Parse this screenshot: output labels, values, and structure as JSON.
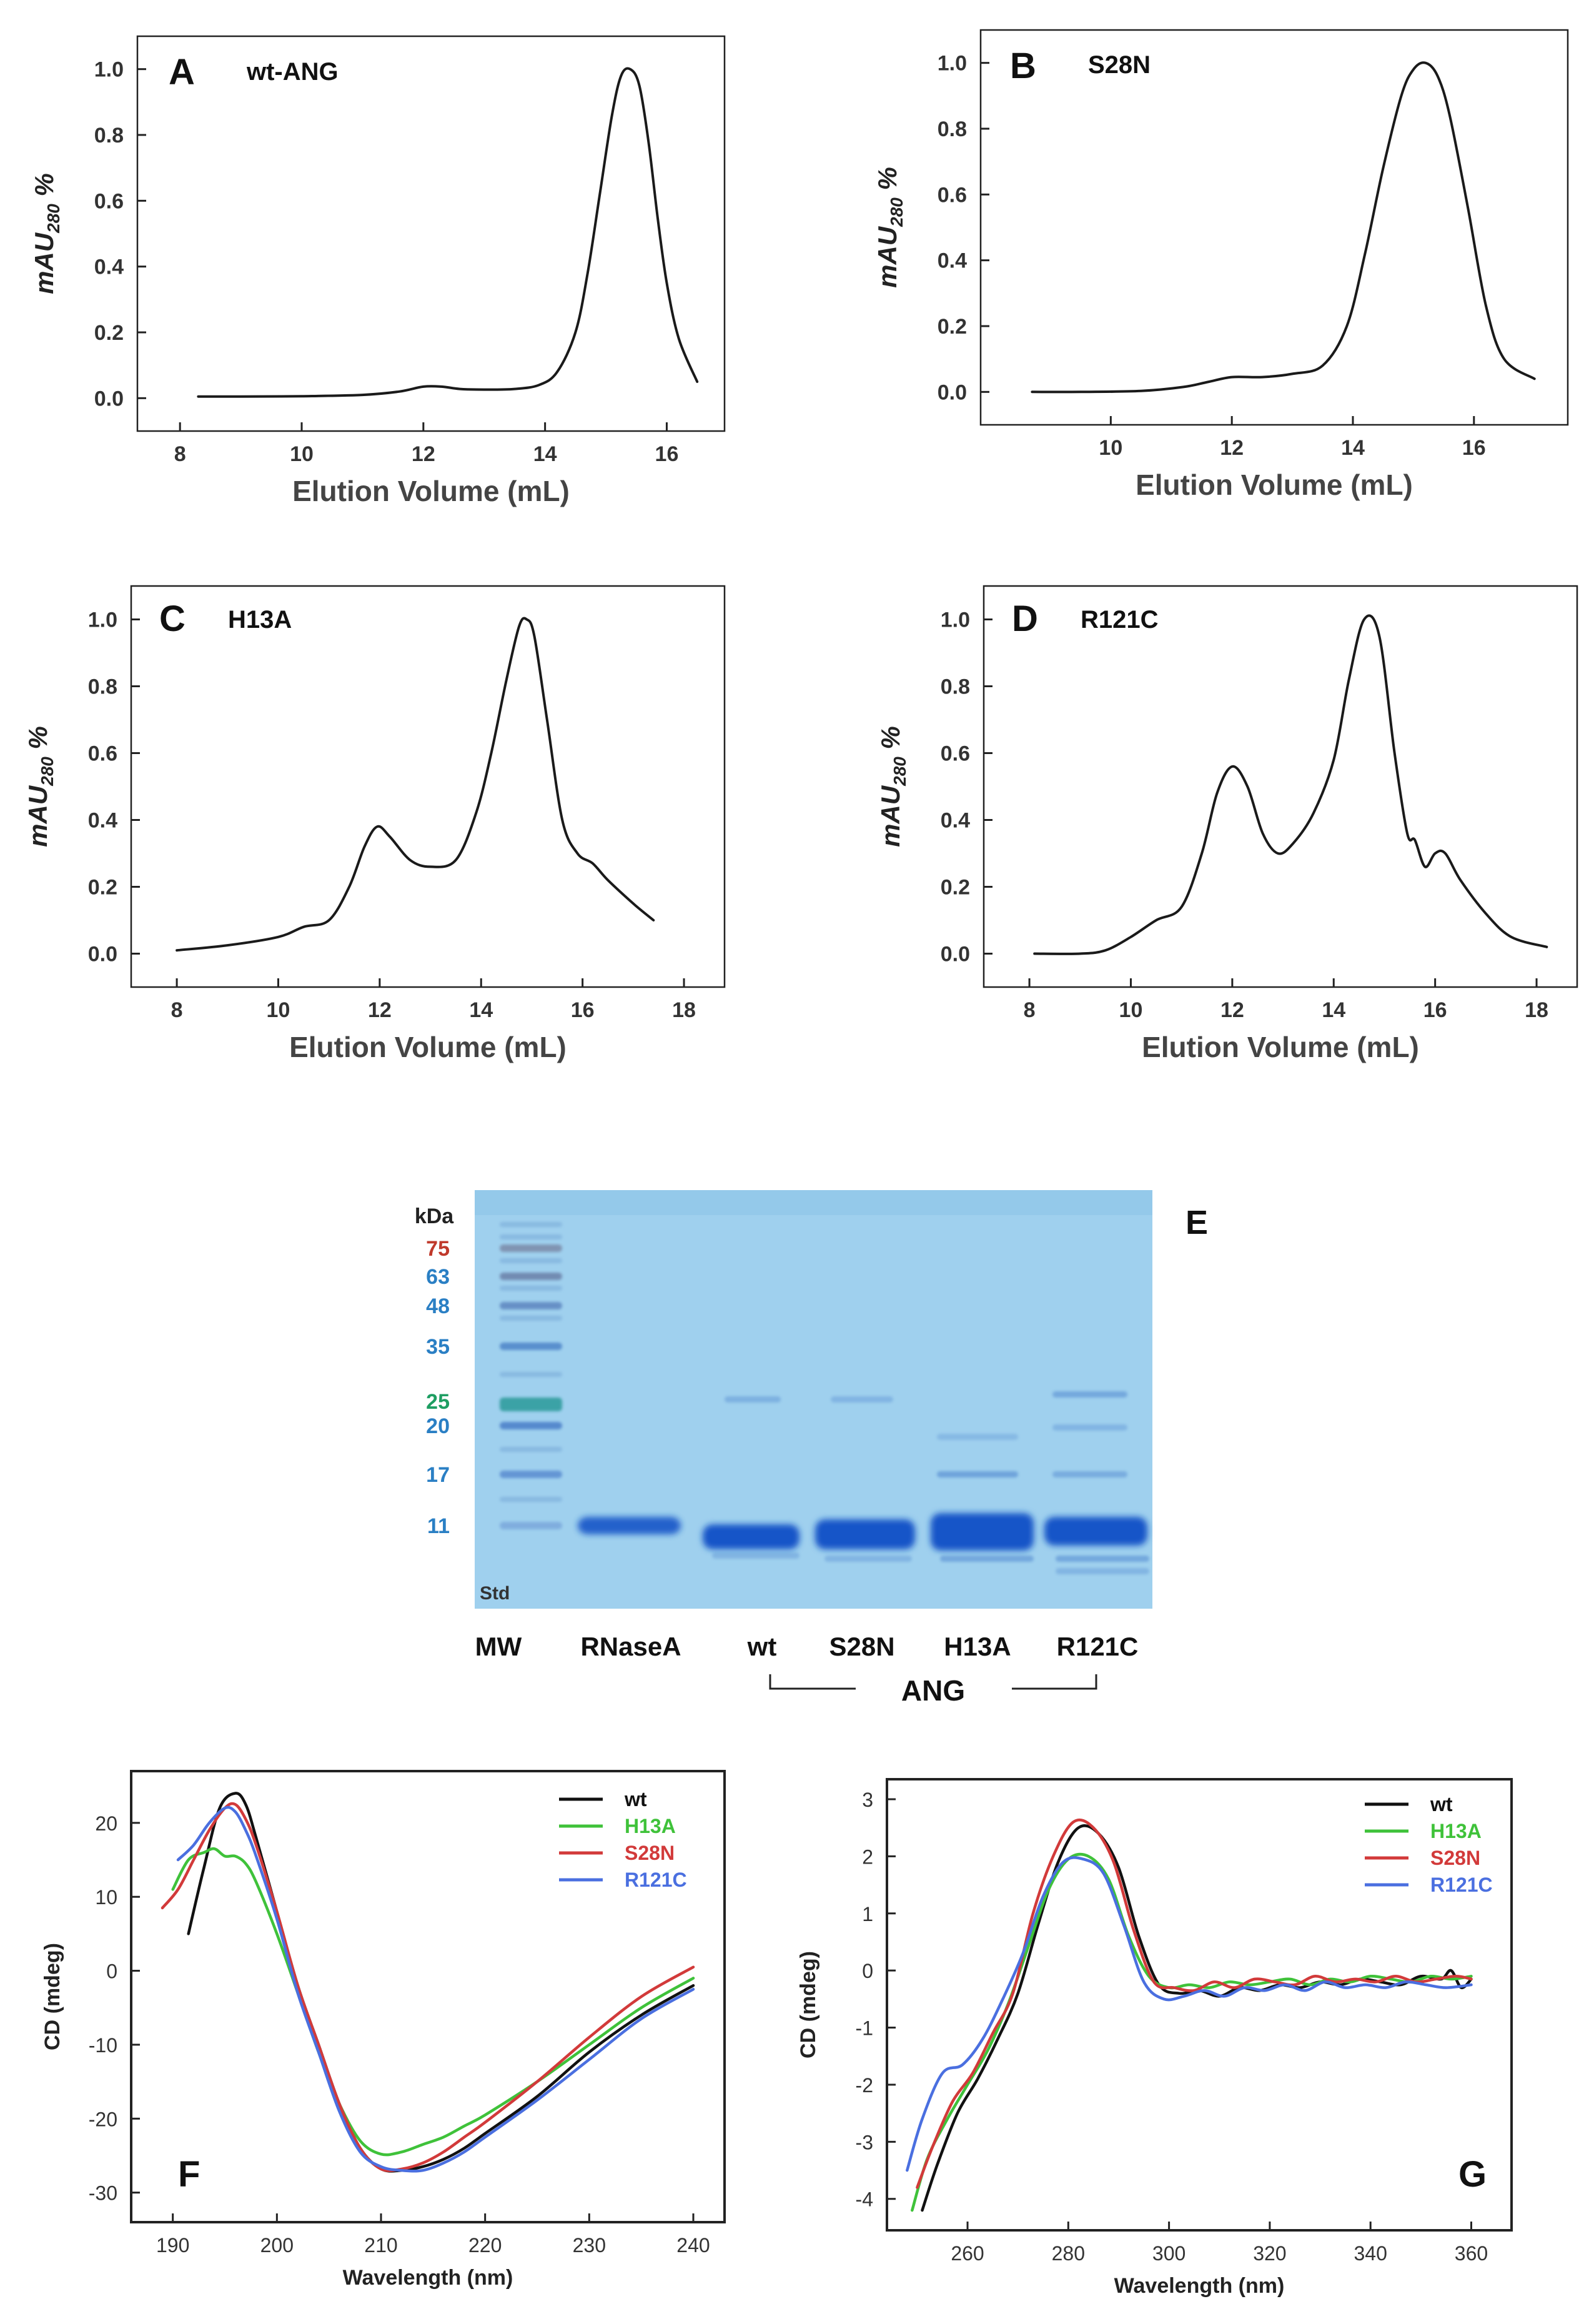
{
  "chart_data": [
    {
      "panel": "A",
      "type": "line",
      "title": "wt-ANG",
      "xlabel": "Elution Volume (mL)",
      "ylabel_main": "mAU",
      "ylabel_sub": "280",
      "ylabel_suffix": " %",
      "xlim": [
        7.3,
        16.95
      ],
      "ylim": [
        -0.1,
        1.1
      ],
      "xticks": [
        8,
        10,
        12,
        14,
        16
      ],
      "yticks": [
        0.0,
        0.2,
        0.4,
        0.6,
        0.8,
        1.0
      ],
      "series": [
        {
          "name": "wt-ANG",
          "color": "#1a1a1a",
          "x": [
            8.3,
            9,
            10,
            11,
            11.6,
            12.0,
            12.3,
            12.6,
            13,
            13.5,
            13.9,
            14.2,
            14.5,
            14.7,
            14.9,
            15.1,
            15.25,
            15.4,
            15.55,
            15.7,
            15.85,
            16.0,
            16.2,
            16.5
          ],
          "y": [
            0.005,
            0.005,
            0.006,
            0.01,
            0.02,
            0.035,
            0.035,
            0.028,
            0.026,
            0.028,
            0.04,
            0.08,
            0.2,
            0.38,
            0.62,
            0.86,
            0.98,
            1.0,
            0.95,
            0.78,
            0.55,
            0.35,
            0.18,
            0.05
          ]
        }
      ]
    },
    {
      "panel": "B",
      "type": "line",
      "title": "S28N",
      "xlabel": "Elution Volume (mL)",
      "ylabel_main": "mAU",
      "ylabel_sub": "280",
      "ylabel_suffix": " %",
      "xlim": [
        7.85,
        17.55
      ],
      "ylim": [
        -0.1,
        1.1
      ],
      "xticks": [
        10,
        12,
        14,
        16
      ],
      "yticks": [
        0.0,
        0.2,
        0.4,
        0.6,
        0.8,
        1.0
      ],
      "series": [
        {
          "name": "S28N",
          "color": "#1a1a1a",
          "x": [
            8.7,
            9.5,
            10.5,
            11.2,
            11.6,
            12.0,
            12.5,
            13,
            13.5,
            13.9,
            14.2,
            14.5,
            14.8,
            15.0,
            15.2,
            15.4,
            15.6,
            15.9,
            16.2,
            16.5,
            17.0
          ],
          "y": [
            0.0,
            0.0,
            0.003,
            0.015,
            0.03,
            0.045,
            0.045,
            0.055,
            0.08,
            0.2,
            0.42,
            0.68,
            0.9,
            0.98,
            1.0,
            0.96,
            0.84,
            0.56,
            0.26,
            0.1,
            0.04
          ]
        }
      ]
    },
    {
      "panel": "C",
      "type": "line",
      "title": "H13A",
      "xlabel": "Elution Volume (mL)",
      "ylabel_main": "mAU",
      "ylabel_sub": "280",
      "ylabel_suffix": " %",
      "xlim": [
        7.1,
        18.8
      ],
      "ylim": [
        -0.1,
        1.1
      ],
      "xticks": [
        8,
        10,
        12,
        14,
        16,
        18
      ],
      "yticks": [
        0.0,
        0.2,
        0.4,
        0.6,
        0.8,
        1.0
      ],
      "series": [
        {
          "name": "H13A",
          "color": "#1a1a1a",
          "x": [
            8.0,
            9,
            10,
            10.5,
            11,
            11.4,
            11.7,
            11.95,
            12.2,
            12.6,
            13.0,
            13.5,
            13.9,
            14.2,
            14.5,
            14.75,
            14.9,
            15.05,
            15.3,
            15.6,
            15.9,
            16.2,
            16.5,
            17.0,
            17.4
          ],
          "y": [
            0.01,
            0.025,
            0.05,
            0.08,
            0.1,
            0.2,
            0.32,
            0.38,
            0.35,
            0.28,
            0.26,
            0.28,
            0.42,
            0.6,
            0.82,
            0.98,
            1.0,
            0.95,
            0.7,
            0.4,
            0.3,
            0.27,
            0.22,
            0.15,
            0.1
          ]
        }
      ]
    },
    {
      "panel": "D",
      "type": "line",
      "title": "R121C",
      "xlabel": "Elution Volume (mL)",
      "ylabel_main": "mAU",
      "ylabel_sub": "280",
      "ylabel_suffix": " %",
      "xlim": [
        7.1,
        18.8
      ],
      "ylim": [
        -0.1,
        1.1
      ],
      "xticks": [
        8,
        10,
        12,
        14,
        16,
        18
      ],
      "yticks": [
        0.0,
        0.2,
        0.4,
        0.6,
        0.8,
        1.0
      ],
      "series": [
        {
          "name": "R121C",
          "color": "#1a1a1a",
          "x": [
            8.1,
            9,
            9.5,
            10,
            10.5,
            11,
            11.4,
            11.7,
            12.0,
            12.3,
            12.6,
            12.9,
            13.2,
            13.6,
            14.0,
            14.3,
            14.6,
            14.9,
            15.2,
            15.45,
            15.6,
            15.8,
            16.0,
            16.2,
            16.5,
            17,
            17.5,
            18.2
          ],
          "y": [
            0.0,
            0.0,
            0.01,
            0.05,
            0.1,
            0.14,
            0.3,
            0.48,
            0.56,
            0.5,
            0.36,
            0.3,
            0.33,
            0.42,
            0.58,
            0.82,
            1.0,
            0.95,
            0.6,
            0.36,
            0.34,
            0.26,
            0.3,
            0.3,
            0.22,
            0.12,
            0.05,
            0.02
          ]
        }
      ]
    },
    {
      "panel": "F",
      "type": "line",
      "xlabel": "Wavelength (nm)",
      "ylabel": "CD (mdeg)",
      "xlim": [
        186,
        243
      ],
      "ylim": [
        -34,
        27
      ],
      "xticks": [
        190,
        200,
        210,
        220,
        230,
        240
      ],
      "yticks": [
        20,
        10,
        0,
        -10,
        -20,
        -30
      ],
      "series": [
        {
          "name": "wt",
          "color": "#111111",
          "x": [
            191.5,
            193,
            194.5,
            196,
            197,
            198,
            200,
            202,
            204,
            206,
            208,
            210,
            212,
            214,
            216,
            218,
            220,
            225,
            230,
            235,
            240
          ],
          "y": [
            5,
            14,
            22,
            24,
            22.5,
            18,
            8,
            -2,
            -10,
            -18,
            -24,
            -26.8,
            -27,
            -26.5,
            -25.5,
            -24,
            -22,
            -17,
            -11,
            -6,
            -2
          ]
        },
        {
          "name": "H13A",
          "color": "#3fc23a",
          "x": [
            190,
            191.5,
            193,
            194,
            195,
            196,
            197,
            198,
            200,
            202,
            204,
            206,
            208,
            210,
            212,
            214,
            216,
            218,
            220,
            225,
            230,
            235,
            240
          ],
          "y": [
            11,
            15,
            16,
            16.5,
            15.5,
            15.5,
            14.5,
            12,
            5,
            -3,
            -11,
            -18,
            -23,
            -24.8,
            -24.5,
            -23.5,
            -22.5,
            -21,
            -19.5,
            -15,
            -10,
            -5,
            -1
          ]
        },
        {
          "name": "S28N",
          "color": "#d23a3a",
          "x": [
            189,
            190.5,
            192,
            193.5,
            195,
            196,
            197,
            198,
            200,
            202,
            204,
            206,
            208,
            210,
            212,
            214,
            216,
            218,
            220,
            225,
            230,
            235,
            240
          ],
          "y": [
            8.5,
            11,
            15,
            19,
            22,
            22.5,
            20.5,
            17,
            8,
            -2,
            -10,
            -18,
            -24,
            -26.8,
            -26.8,
            -26,
            -24.5,
            -22.5,
            -20.5,
            -15,
            -9,
            -3.5,
            0.5
          ]
        },
        {
          "name": "R121C",
          "color": "#4a6fe0",
          "x": [
            190.5,
            192,
            193.5,
            195,
            196,
            197,
            198,
            200,
            202,
            204,
            206,
            208,
            210,
            212,
            214,
            216,
            218,
            220,
            225,
            230,
            235,
            240
          ],
          "y": [
            15,
            17,
            20,
            22,
            21.5,
            19,
            15.5,
            7,
            -3,
            -11,
            -19,
            -24.5,
            -26.5,
            -27,
            -27,
            -26,
            -24.5,
            -22.5,
            -17.5,
            -12,
            -6.5,
            -2.5
          ]
        }
      ]
    },
    {
      "panel": "G",
      "type": "line",
      "xlabel": "Wavelength (nm)",
      "ylabel": "CD (mdeg)",
      "xlim": [
        244,
        368
      ],
      "ylim": [
        -4.55,
        3.35
      ],
      "xticks": [
        260,
        280,
        300,
        320,
        340,
        360
      ],
      "yticks": [
        3,
        2,
        1,
        0,
        -1,
        -2,
        -3,
        -4
      ],
      "series": [
        {
          "name": "wt",
          "color": "#111111",
          "x": [
            251,
            254,
            258,
            262,
            266,
            270,
            274,
            278,
            282,
            286,
            290,
            294,
            298,
            302,
            306,
            310,
            314,
            318,
            322,
            326,
            330,
            334,
            338,
            342,
            346,
            350,
            354,
            356,
            358,
            360
          ],
          "y": [
            -4.2,
            -3.4,
            -2.5,
            -1.9,
            -1.2,
            -0.4,
            0.8,
            1.9,
            2.5,
            2.4,
            1.8,
            0.6,
            -0.25,
            -0.4,
            -0.35,
            -0.45,
            -0.3,
            -0.35,
            -0.25,
            -0.3,
            -0.2,
            -0.25,
            -0.15,
            -0.2,
            -0.25,
            -0.1,
            -0.15,
            0.0,
            -0.3,
            -0.15
          ]
        },
        {
          "name": "H13A",
          "color": "#3fc23a",
          "x": [
            249,
            252,
            256,
            260,
            264,
            268,
            272,
            276,
            280,
            284,
            288,
            292,
            296,
            300,
            304,
            308,
            312,
            316,
            320,
            324,
            328,
            332,
            336,
            340,
            344,
            348,
            352,
            356,
            360
          ],
          "y": [
            -4.2,
            -3.3,
            -2.6,
            -2.0,
            -1.4,
            -0.6,
            0.4,
            1.4,
            1.95,
            2.0,
            1.6,
            0.6,
            -0.1,
            -0.3,
            -0.25,
            -0.3,
            -0.2,
            -0.25,
            -0.2,
            -0.15,
            -0.25,
            -0.15,
            -0.2,
            -0.1,
            -0.15,
            -0.2,
            -0.1,
            -0.15,
            -0.1
          ]
        },
        {
          "name": "S28N",
          "color": "#d23a3a",
          "x": [
            250,
            253,
            257,
            261,
            265,
            269,
            273,
            277,
            281,
            285,
            289,
            293,
            297,
            301,
            305,
            309,
            313,
            317,
            321,
            325,
            329,
            333,
            337,
            341,
            345,
            349,
            353,
            357,
            360
          ],
          "y": [
            -3.8,
            -3.1,
            -2.3,
            -1.8,
            -1.1,
            -0.4,
            1.0,
            2.0,
            2.6,
            2.5,
            1.9,
            0.7,
            -0.2,
            -0.3,
            -0.35,
            -0.2,
            -0.3,
            -0.15,
            -0.2,
            -0.25,
            -0.1,
            -0.2,
            -0.15,
            -0.2,
            -0.1,
            -0.2,
            -0.15,
            -0.1,
            -0.15
          ]
        },
        {
          "name": "R121C",
          "color": "#4a6fe0",
          "x": [
            248,
            251,
            255,
            259,
            263,
            267,
            271,
            275,
            279,
            283,
            287,
            291,
            295,
            299,
            303,
            307,
            311,
            315,
            319,
            323,
            327,
            331,
            335,
            339,
            343,
            347,
            351,
            355,
            360
          ],
          "y": [
            -3.5,
            -2.6,
            -1.8,
            -1.65,
            -1.2,
            -0.5,
            0.3,
            1.3,
            1.9,
            1.95,
            1.7,
            0.8,
            -0.2,
            -0.5,
            -0.45,
            -0.35,
            -0.45,
            -0.3,
            -0.35,
            -0.25,
            -0.35,
            -0.2,
            -0.3,
            -0.25,
            -0.3,
            -0.2,
            -0.25,
            -0.3,
            -0.25
          ]
        }
      ]
    }
  ],
  "gel": {
    "panel": "E",
    "kda_label": "kDa",
    "markers": [
      {
        "label": "75",
        "color": "#c0392b"
      },
      {
        "label": "63",
        "color": "#2a7fc4"
      },
      {
        "label": "48",
        "color": "#2a7fc4"
      },
      {
        "label": "35",
        "color": "#2a7fc4"
      },
      {
        "label": "25",
        "color": "#1e9e62"
      },
      {
        "label": "20",
        "color": "#2a7fc4"
      },
      {
        "label": "17",
        "color": "#2a7fc4"
      },
      {
        "label": "11",
        "color": "#2a7fc4"
      }
    ],
    "std_label": "Std",
    "lanes": [
      "MW",
      "RNaseA",
      "wt",
      "S28N",
      "H13A",
      "R121C"
    ],
    "group_label": "ANG",
    "background_color": "#9fd0ee",
    "band_color": "#1655c8"
  }
}
